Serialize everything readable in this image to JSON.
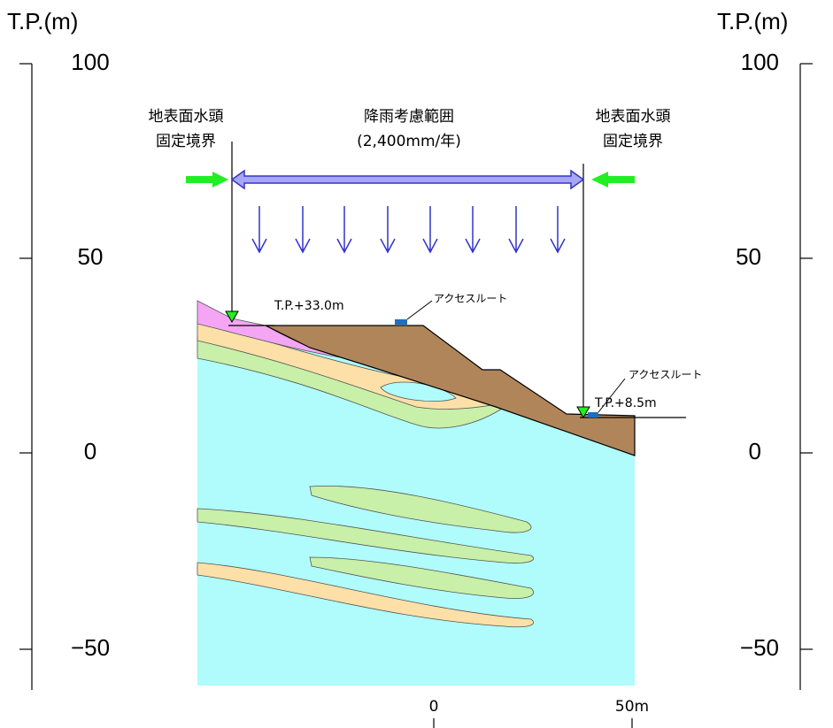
{
  "axis_left": {
    "title": "T.P.(m)",
    "ticks": [
      "100",
      "50",
      "0",
      "−50"
    ]
  },
  "axis_right": {
    "title": "T.P.(m)",
    "ticks": [
      "100",
      "50",
      "0",
      "−50"
    ]
  },
  "boundary_left": {
    "lines": [
      "地表面水頭",
      "固定境界"
    ]
  },
  "boundary_right": {
    "lines": [
      "地表面水頭",
      "固定境界"
    ]
  },
  "rain_range": {
    "lines": [
      "降雨考慮範囲",
      "(2,400mm/年)"
    ]
  },
  "levels": {
    "upper": "T.P.+33.0m",
    "lower": "T.P.+8.5m"
  },
  "access_routes": [
    "アクセスルート",
    "アクセスルート"
  ],
  "scale": {
    "start": "0",
    "end": "50m"
  }
}
